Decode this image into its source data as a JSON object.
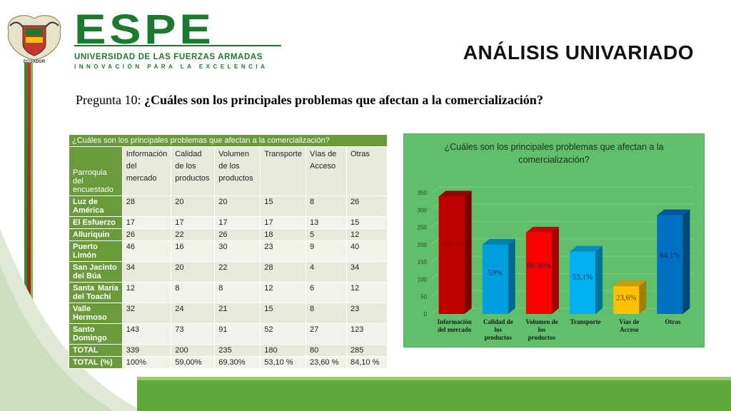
{
  "header": {
    "logo_main": "ESPE",
    "logo_university": "UNIVERSIDAD DE LAS FUERZAS ARMADAS",
    "logo_motto": "INNOVACIÓN PARA LA EXCELENCIA",
    "seal_caption": "ECUADOR",
    "title": "ANÁLISIS UNIVARIADO"
  },
  "question": {
    "prefix": "Pregunta 10: ",
    "text": "¿Cuáles son los principales problemas que afectan a la comercialización?"
  },
  "table": {
    "caption": "¿Cuáles son los principales problemas que afectan a la comercialización?",
    "row_header": "Parroquia del encuestado",
    "columns": [
      "Información del mercado",
      "Calidad de los productos",
      "Volumen de los productos",
      "Transporte",
      "Vías de Acceso",
      "Otras"
    ],
    "rows": [
      {
        "name": "Luz de América",
        "values": [
          "28",
          "20",
          "20",
          "15",
          "8",
          "26"
        ]
      },
      {
        "name": "El Esfuerzo",
        "values": [
          "17",
          "17",
          "17",
          "17",
          "13",
          "15"
        ]
      },
      {
        "name": "Alluriquin",
        "values": [
          "26",
          "22",
          "26",
          "18",
          "5",
          "12"
        ]
      },
      {
        "name": "Puerto Limón",
        "values": [
          "46",
          "16",
          "30",
          "23",
          "9",
          "40"
        ]
      },
      {
        "name": "San Jacinto del Búa",
        "values": [
          "34",
          "20",
          "22",
          "28",
          "4",
          "34"
        ]
      },
      {
        "name": "Santa María del Toachi",
        "values": [
          "12",
          "8",
          "8",
          "12",
          "6",
          "12"
        ]
      },
      {
        "name": "Valle Hermoso",
        "values": [
          "32",
          "24",
          "21",
          "15",
          "8",
          "23"
        ]
      },
      {
        "name": "Santo Domingo",
        "values": [
          "143",
          "73",
          "91",
          "52",
          "27",
          "123"
        ]
      },
      {
        "name": "TOTAL",
        "values": [
          "339",
          "200",
          "235",
          "180",
          "80",
          "285"
        ]
      },
      {
        "name": "TOTAL (%)",
        "values": [
          "100%",
          "59,00%",
          "69,30%",
          "53,10 %",
          "23,60 %",
          "84,10 %"
        ]
      }
    ]
  },
  "chart_data": {
    "type": "bar",
    "title": "¿Cuáles son los principales problemas que afectan a la comercialización?",
    "categories": [
      "Información del mercado",
      "Calidad de los productos",
      "Volumen de los productos",
      "Transporte",
      "Vías de Acceso",
      "Otras"
    ],
    "values": [
      339,
      200,
      235,
      180,
      80,
      285
    ],
    "data_labels": [
      "100%",
      "59%",
      "69,30%",
      "53,1%",
      "23,6%",
      "84,1%"
    ],
    "colors": [
      "#c00000",
      "#00a0e0",
      "#ff0000",
      "#00b0f0",
      "#ffc000",
      "#0070c0"
    ],
    "ylim": [
      0,
      350
    ],
    "yticks": [
      0,
      50,
      100,
      150,
      200,
      250,
      300,
      350
    ],
    "grid": true,
    "style": "3d-column",
    "background": "#5fbf6a"
  },
  "colors": {
    "brand_green": "#1a7a2e",
    "table_header": "#6b9a3a",
    "band": "#5fa83a"
  }
}
